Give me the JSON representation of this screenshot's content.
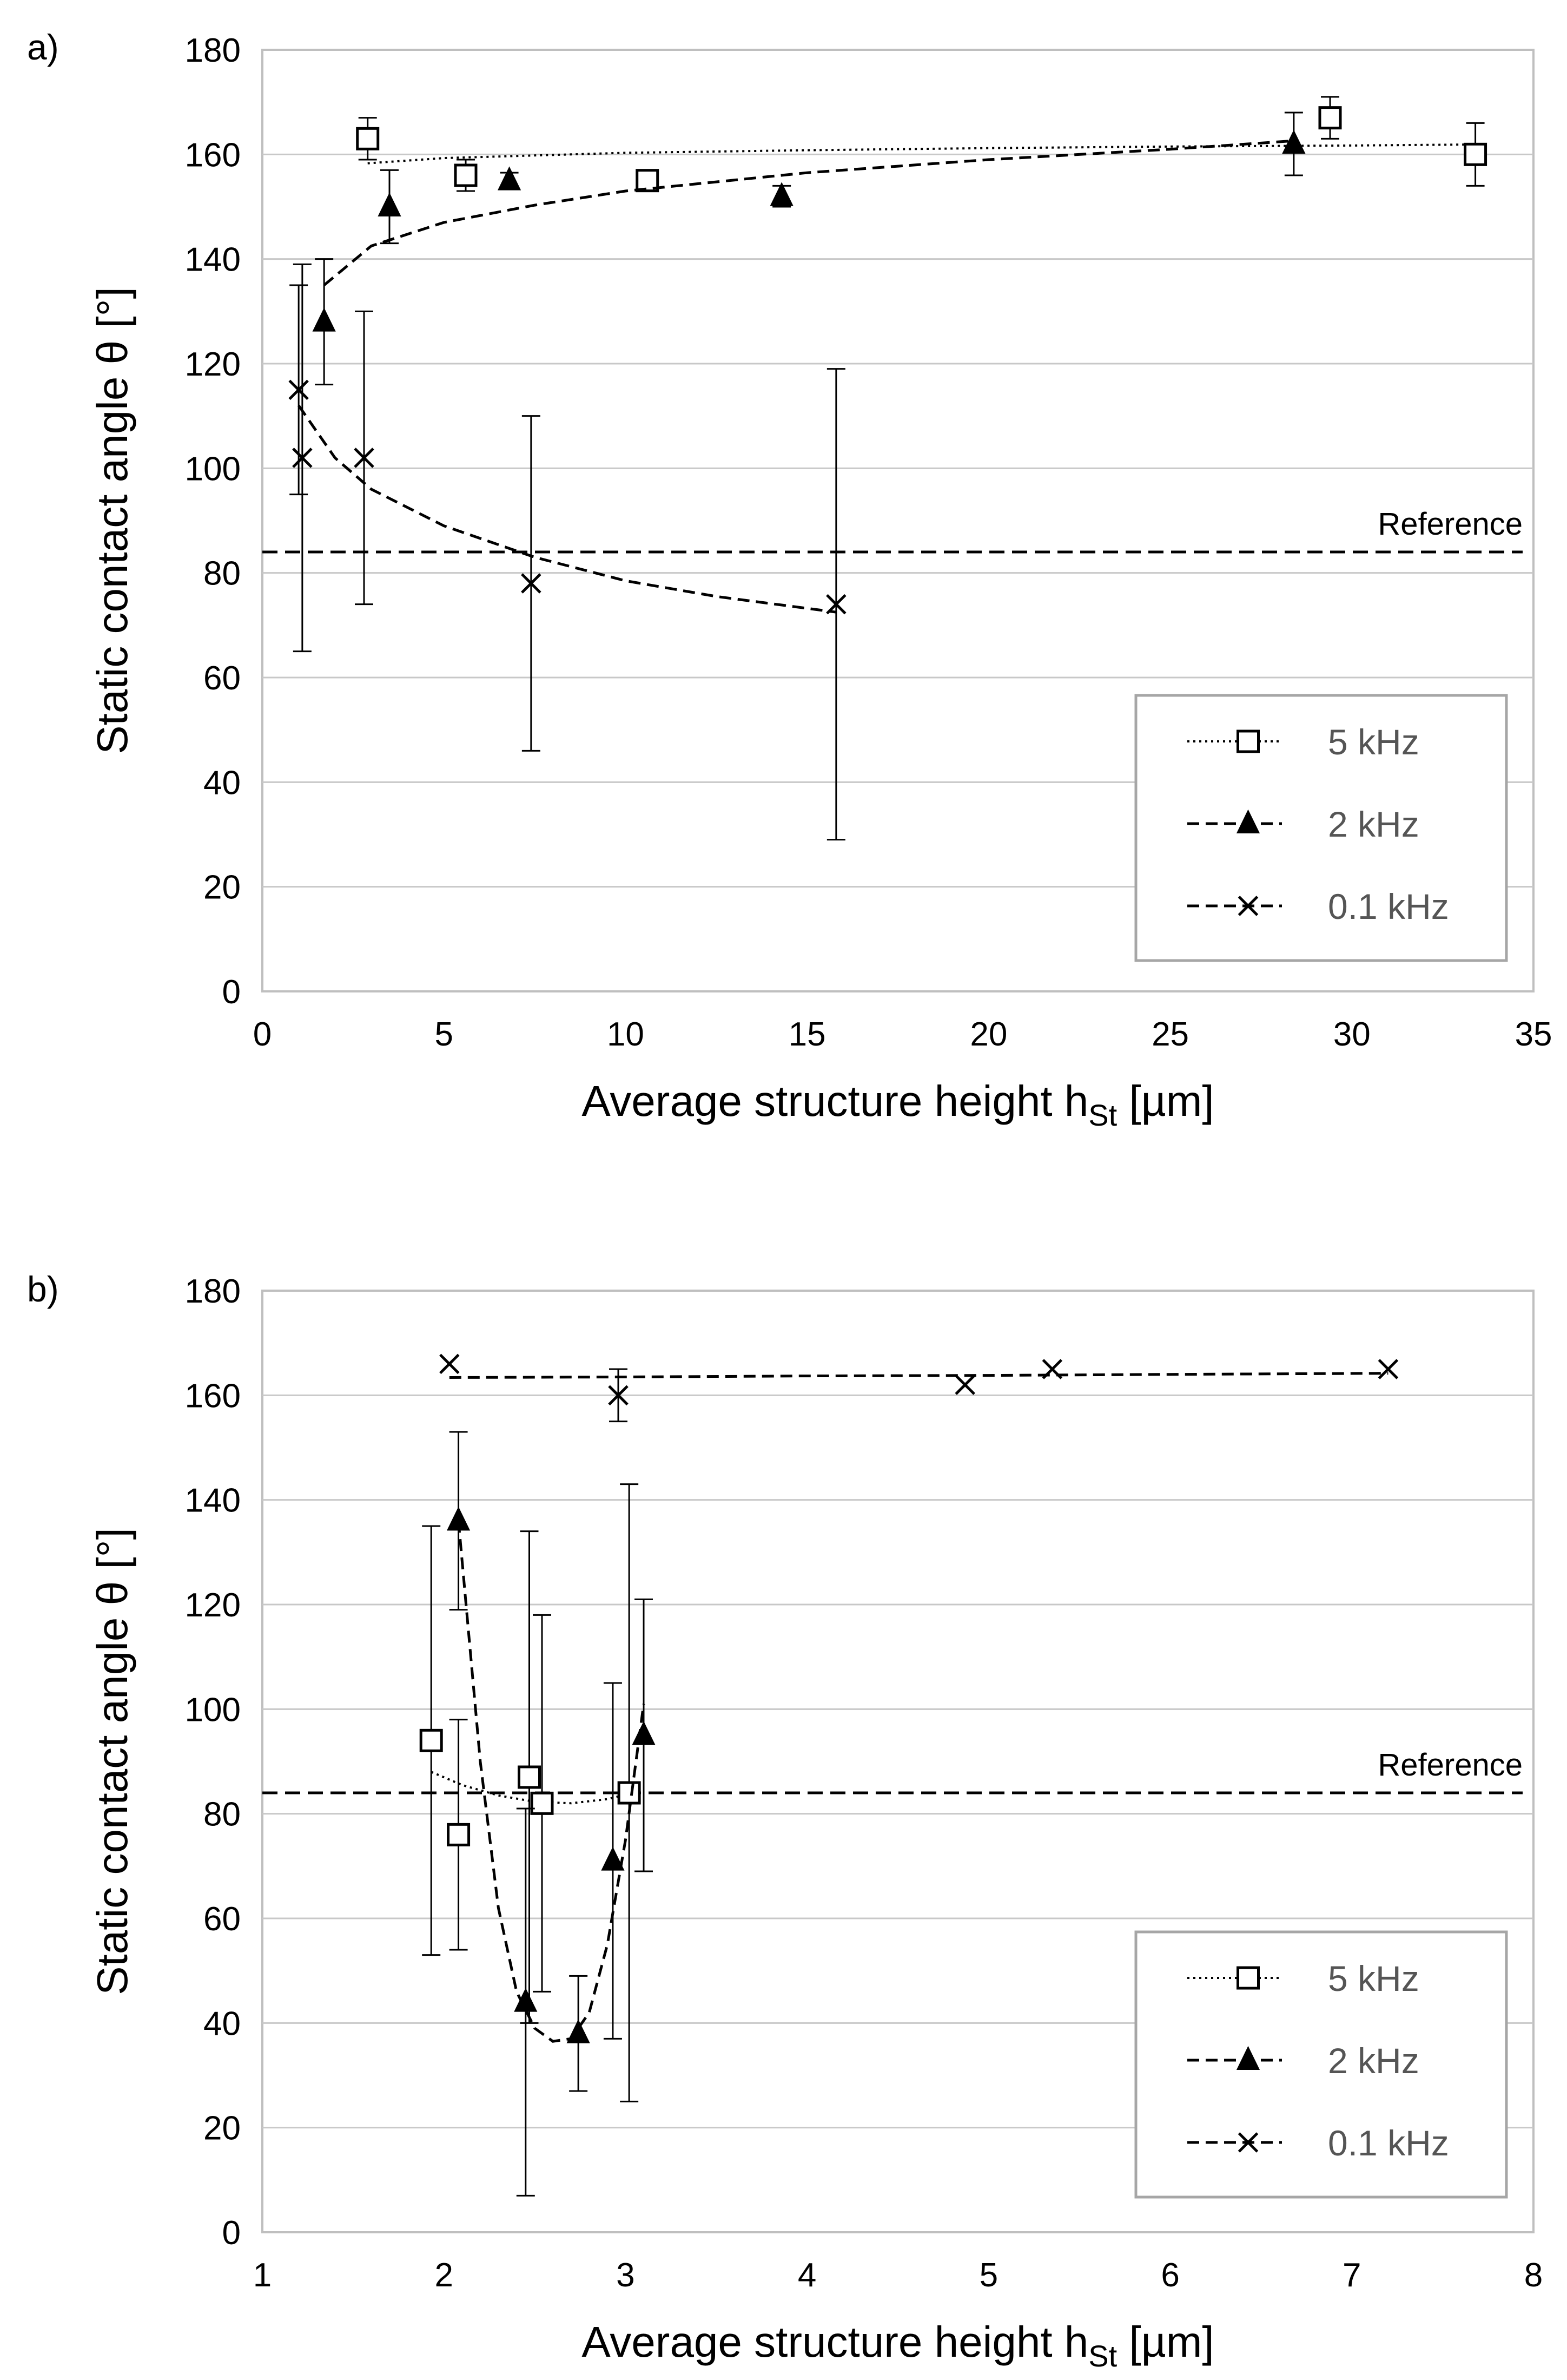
{
  "chart_data": [
    {
      "type": "scatter",
      "panel_label": "a)",
      "title": "",
      "xlabel": "Average structure height h",
      "xlabel_sub": "St",
      "xlabel_unit": " [µm]",
      "ylabel": "Static contact angle θ [°]",
      "xlim": [
        0,
        35
      ],
      "ylim": [
        0,
        180
      ],
      "xticks": [
        "0",
        "5",
        "10",
        "15",
        "20",
        "25",
        "30",
        "35"
      ],
      "yticks": [
        "0",
        "20",
        "40",
        "60",
        "80",
        "100",
        "120",
        "140",
        "160",
        "180"
      ],
      "grid": "horizontal",
      "legend_position": "bottom-right",
      "reference": {
        "label": "Reference",
        "y": 84
      },
      "series": [
        {
          "name": "5 kHz",
          "marker": "square-open",
          "line": "dotted",
          "points": [
            {
              "x": 2.9,
              "y": 163,
              "err_low": 4,
              "err_high": 4
            },
            {
              "x": 5.6,
              "y": 156,
              "err_low": 3,
              "err_high": 3
            },
            {
              "x": 10.6,
              "y": 155,
              "err_low": 2,
              "err_high": 2
            },
            {
              "x": 29.4,
              "y": 167,
              "err_low": 4,
              "err_high": 4
            },
            {
              "x": 33.4,
              "y": 160,
              "err_low": 6,
              "err_high": 6
            }
          ],
          "trend": [
            [
              2.9,
              158.3
            ],
            [
              5,
              159.3
            ],
            [
              10,
              160.3
            ],
            [
              15,
              160.8
            ],
            [
              20,
              161.2
            ],
            [
              25,
              161.5
            ],
            [
              30,
              161.7
            ],
            [
              33.4,
              161.9
            ]
          ]
        },
        {
          "name": "2 kHz",
          "marker": "triangle-filled",
          "line": "dashed",
          "points": [
            {
              "x": 1.7,
              "y": 128,
              "err_low": 12,
              "err_high": 12
            },
            {
              "x": 3.5,
              "y": 150,
              "err_low": 7,
              "err_high": 7
            },
            {
              "x": 6.8,
              "y": 155,
              "err_low": 1.5,
              "err_high": 1.5
            },
            {
              "x": 14.3,
              "y": 152,
              "err_low": 2,
              "err_high": 2
            },
            {
              "x": 28.4,
              "y": 162,
              "err_low": 6,
              "err_high": 6
            }
          ],
          "trend": [
            [
              1.7,
              135
            ],
            [
              3,
              142.5
            ],
            [
              5,
              147
            ],
            [
              7.5,
              150.3
            ],
            [
              10,
              153
            ],
            [
              15,
              156.5
            ],
            [
              20,
              159
            ],
            [
              25,
              161
            ],
            [
              28.4,
              162.6
            ]
          ]
        },
        {
          "name": "0.1 kHz",
          "marker": "x",
          "line": "dashed",
          "points": [
            {
              "x": 1.0,
              "y": 115,
              "err_low": 20,
              "err_high": 20
            },
            {
              "x": 1.1,
              "y": 102,
              "err_low": 37,
              "err_high": 37
            },
            {
              "x": 2.8,
              "y": 102,
              "err_low": 28,
              "err_high": 28
            },
            {
              "x": 7.4,
              "y": 78,
              "err_low": 32,
              "err_high": 32
            },
            {
              "x": 15.8,
              "y": 74,
              "err_low": 45,
              "err_high": 45
            }
          ],
          "trend": [
            [
              1.0,
              112
            ],
            [
              2,
              102
            ],
            [
              3,
              96
            ],
            [
              5,
              89
            ],
            [
              7.5,
              83
            ],
            [
              10,
              78.5
            ],
            [
              12.5,
              75.5
            ],
            [
              15.8,
              72.5
            ]
          ]
        }
      ]
    },
    {
      "type": "scatter",
      "panel_label": "b)",
      "title": "",
      "xlabel": "Average structure height h",
      "xlabel_sub": "St",
      "xlabel_unit": " [µm]",
      "ylabel": "Static contact angle θ [°]",
      "xlim": [
        1,
        8
      ],
      "ylim": [
        0,
        180
      ],
      "xticks": [
        "1",
        "2",
        "3",
        "4",
        "5",
        "6",
        "7",
        "8"
      ],
      "yticks": [
        "0",
        "20",
        "40",
        "60",
        "80",
        "100",
        "120",
        "140",
        "160",
        "180"
      ],
      "grid": "horizontal",
      "legend_position": "bottom-right",
      "reference": {
        "label": "Reference",
        "y": 84
      },
      "series": [
        {
          "name": "5 kHz",
          "marker": "square-open",
          "line": "dotted",
          "points": [
            {
              "x": 1.93,
              "y": 94,
              "err_low": 41,
              "err_high": 41
            },
            {
              "x": 2.08,
              "y": 76,
              "err_low": 22,
              "err_high": 22
            },
            {
              "x": 2.47,
              "y": 87,
              "err_low": 47,
              "err_high": 47
            },
            {
              "x": 2.54,
              "y": 82,
              "err_low": 36,
              "err_high": 36
            },
            {
              "x": 3.02,
              "y": 84,
              "err_low": 59,
              "err_high": 59
            }
          ],
          "trend": [
            [
              1.93,
              88
            ],
            [
              2.1,
              85.5
            ],
            [
              2.3,
              83.5
            ],
            [
              2.5,
              82.3
            ],
            [
              2.7,
              82
            ],
            [
              2.9,
              82.8
            ],
            [
              3.02,
              83.8
            ]
          ]
        },
        {
          "name": "2 kHz",
          "marker": "triangle-filled",
          "line": "dashed",
          "points": [
            {
              "x": 2.08,
              "y": 136,
              "err_low": 17,
              "err_high": 17
            },
            {
              "x": 2.45,
              "y": 44,
              "err_low": 37,
              "err_high": 37
            },
            {
              "x": 2.74,
              "y": 38,
              "err_low": 11,
              "err_high": 11
            },
            {
              "x": 2.93,
              "y": 71,
              "err_low": 34,
              "err_high": 34
            },
            {
              "x": 3.1,
              "y": 95,
              "err_low": 26,
              "err_high": 26
            }
          ],
          "trend": [
            [
              2.08,
              136
            ],
            [
              2.2,
              90
            ],
            [
              2.3,
              62
            ],
            [
              2.4,
              46
            ],
            [
              2.5,
              39
            ],
            [
              2.6,
              36.5
            ],
            [
              2.7,
              37
            ],
            [
              2.8,
              42
            ],
            [
              2.9,
              55
            ],
            [
              3.0,
              75
            ],
            [
              3.1,
              101
            ]
          ]
        },
        {
          "name": "0.1 kHz",
          "marker": "x",
          "line": "dashed",
          "points": [
            {
              "x": 2.03,
              "y": 166
            },
            {
              "x": 2.96,
              "y": 160,
              "err_low": 5,
              "err_high": 5
            },
            {
              "x": 4.87,
              "y": 162
            },
            {
              "x": 5.35,
              "y": 165
            },
            {
              "x": 7.2,
              "y": 165
            }
          ],
          "trend": [
            [
              2.03,
              163.4
            ],
            [
              3,
              163.5
            ],
            [
              4,
              163.7
            ],
            [
              5,
              163.8
            ],
            [
              6,
              164.0
            ],
            [
              7.2,
              164.2
            ]
          ]
        }
      ]
    }
  ]
}
